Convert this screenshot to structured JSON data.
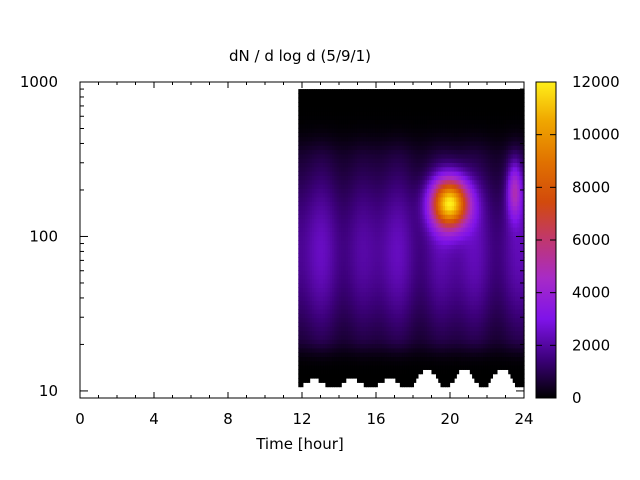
{
  "chart_data": {
    "type": "heatmap",
    "title": "dN / d log d (5/9/1)",
    "xlabel": "Time [hour]",
    "ylabel": "",
    "x_range": [
      0,
      24
    ],
    "x_ticks": [
      0,
      4,
      8,
      12,
      16,
      20,
      24
    ],
    "y_scale": "log",
    "y_range": [
      9,
      1000
    ],
    "y_ticks": [
      10,
      100,
      1000
    ],
    "data_x_extent": [
      11.8,
      24
    ],
    "data_y_extent": [
      10,
      900
    ],
    "colorbar": {
      "range": [
        0,
        12000
      ],
      "ticks": [
        0,
        2000,
        4000,
        6000,
        8000,
        10000,
        12000
      ],
      "palette": "black-purple-red-orange-yellow"
    },
    "peak": {
      "time": 20,
      "diameter": 165,
      "value": 10500
    },
    "background_level": 2500,
    "grid": false,
    "legend": "colorbar-right"
  }
}
